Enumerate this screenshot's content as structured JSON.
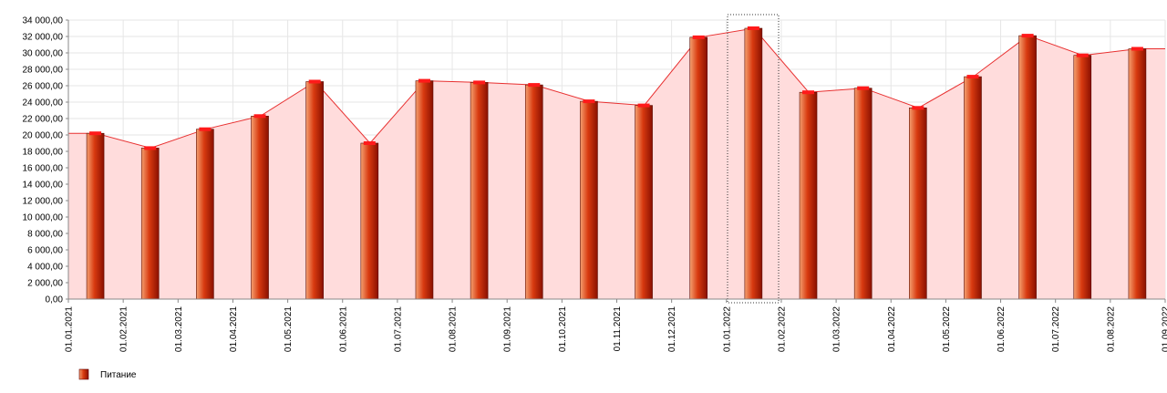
{
  "chart_data": {
    "type": "bar",
    "xticks": [
      "01.01.2021",
      "01.02.2021",
      "01.03.2021",
      "01.04.2021",
      "01.05.2021",
      "01.06.2021",
      "01.07.2021",
      "01.08.2021",
      "01.09.2021",
      "01.10.2021",
      "01.11.2021",
      "01.12.2021",
      "01.01.2022",
      "01.02.2022",
      "01.03.2022",
      "01.04.2022",
      "01.05.2022",
      "01.06.2022",
      "01.07.2022",
      "01.08.2022",
      "01.09.2022"
    ],
    "series": [
      {
        "name": "Питание",
        "color": "#cc2200",
        "values": [
          20200,
          18400,
          20700,
          22300,
          26500,
          19000,
          26600,
          26400,
          26100,
          24100,
          23600,
          31900,
          33000,
          25200,
          25700,
          23300,
          27100,
          32100,
          29700,
          30500
        ]
      }
    ],
    "ylim": [
      0,
      34000
    ],
    "yticks": [
      {
        "value": 0,
        "label": "0,00"
      },
      {
        "value": 2000,
        "label": "2 000,00"
      },
      {
        "value": 4000,
        "label": "4 000,00"
      },
      {
        "value": 6000,
        "label": "6 000,00"
      },
      {
        "value": 8000,
        "label": "8 000,00"
      },
      {
        "value": 10000,
        "label": "10 000,00"
      },
      {
        "value": 12000,
        "label": "12 000,00"
      },
      {
        "value": 14000,
        "label": "14 000,00"
      },
      {
        "value": 16000,
        "label": "16 000,00"
      },
      {
        "value": 18000,
        "label": "18 000,00"
      },
      {
        "value": 20000,
        "label": "20 000,00"
      },
      {
        "value": 22000,
        "label": "22 000,00"
      },
      {
        "value": 24000,
        "label": "24 000,00"
      },
      {
        "value": 26000,
        "label": "26 000,00"
      },
      {
        "value": 28000,
        "label": "28 000,00"
      },
      {
        "value": 30000,
        "label": "30 000,00"
      },
      {
        "value": 32000,
        "label": "32 000,00"
      },
      {
        "value": 34000,
        "label": "34 000,00"
      }
    ],
    "grid": true
  }
}
